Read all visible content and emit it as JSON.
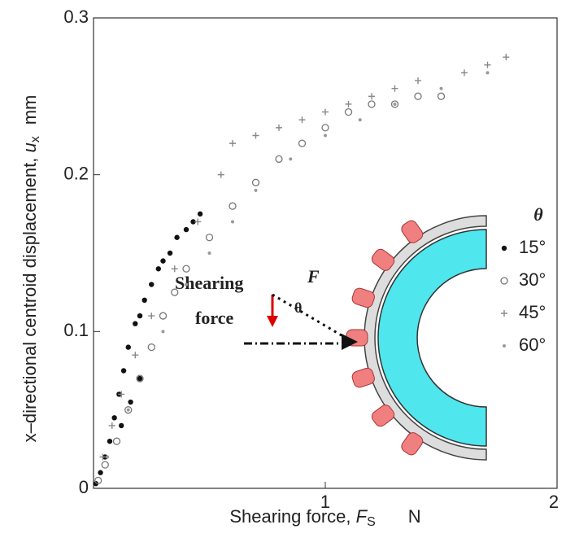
{
  "chart_data": {
    "type": "scatter",
    "xlabel": {
      "text": "Shearing force, ",
      "symbol": "F",
      "subscript": "S",
      "unit": "N"
    },
    "ylabel": {
      "text": "x–directional centroid displacement, ",
      "symbol": "u",
      "subscript": "x",
      "unit": "mm"
    },
    "xlim": [
      0,
      2
    ],
    "ylim": [
      0,
      0.3
    ],
    "xticks": [
      0,
      1,
      2
    ],
    "yticks": [
      0,
      0.1,
      0.2,
      0.3
    ],
    "legend_title": "θ",
    "annotations": [
      "Shearing",
      "force",
      "F",
      "θ"
    ],
    "series": [
      {
        "name": "15°",
        "color": "#111111",
        "marker": "dot",
        "x": [
          0.01,
          0.03,
          0.05,
          0.07,
          0.09,
          0.11,
          0.13,
          0.15,
          0.18,
          0.2,
          0.22,
          0.25,
          0.28,
          0.3,
          0.33,
          0.36,
          0.4,
          0.43,
          0.46,
          0.12,
          0.16,
          0.2
        ],
        "y": [
          0.003,
          0.01,
          0.02,
          0.03,
          0.045,
          0.06,
          0.075,
          0.09,
          0.105,
          0.11,
          0.12,
          0.13,
          0.14,
          0.145,
          0.15,
          0.16,
          0.165,
          0.17,
          0.175,
          0.04,
          0.055,
          0.07
        ]
      },
      {
        "name": "30°",
        "color": "#777777",
        "marker": "circle",
        "x": [
          0.02,
          0.05,
          0.1,
          0.15,
          0.2,
          0.25,
          0.3,
          0.35,
          0.4,
          0.5,
          0.6,
          0.7,
          0.8,
          0.9,
          1.0,
          1.1,
          1.2,
          1.3,
          1.4,
          1.5
        ],
        "y": [
          0.005,
          0.015,
          0.03,
          0.05,
          0.07,
          0.09,
          0.11,
          0.125,
          0.14,
          0.16,
          0.18,
          0.195,
          0.21,
          0.22,
          0.23,
          0.24,
          0.245,
          0.245,
          0.25,
          0.25
        ]
      },
      {
        "name": "45°",
        "color": "#888888",
        "marker": "plus",
        "x": [
          0.04,
          0.08,
          0.12,
          0.18,
          0.25,
          0.35,
          0.45,
          0.55,
          0.6,
          0.7,
          0.8,
          0.9,
          1.0,
          1.1,
          1.2,
          1.3,
          1.4,
          1.6,
          1.7,
          1.78
        ],
        "y": [
          0.02,
          0.04,
          0.06,
          0.085,
          0.11,
          0.14,
          0.17,
          0.2,
          0.22,
          0.225,
          0.23,
          0.235,
          0.24,
          0.245,
          0.25,
          0.255,
          0.26,
          0.265,
          0.27,
          0.275
        ]
      },
      {
        "name": "60°",
        "color": "#999999",
        "marker": "small",
        "x": [
          0.06,
          0.15,
          0.3,
          0.4,
          0.5,
          0.6,
          0.7,
          0.85,
          1.0,
          1.15,
          1.3,
          1.5,
          1.7
        ],
        "y": [
          0.02,
          0.05,
          0.1,
          0.13,
          0.15,
          0.17,
          0.19,
          0.21,
          0.225,
          0.235,
          0.245,
          0.255,
          0.265
        ]
      }
    ]
  }
}
